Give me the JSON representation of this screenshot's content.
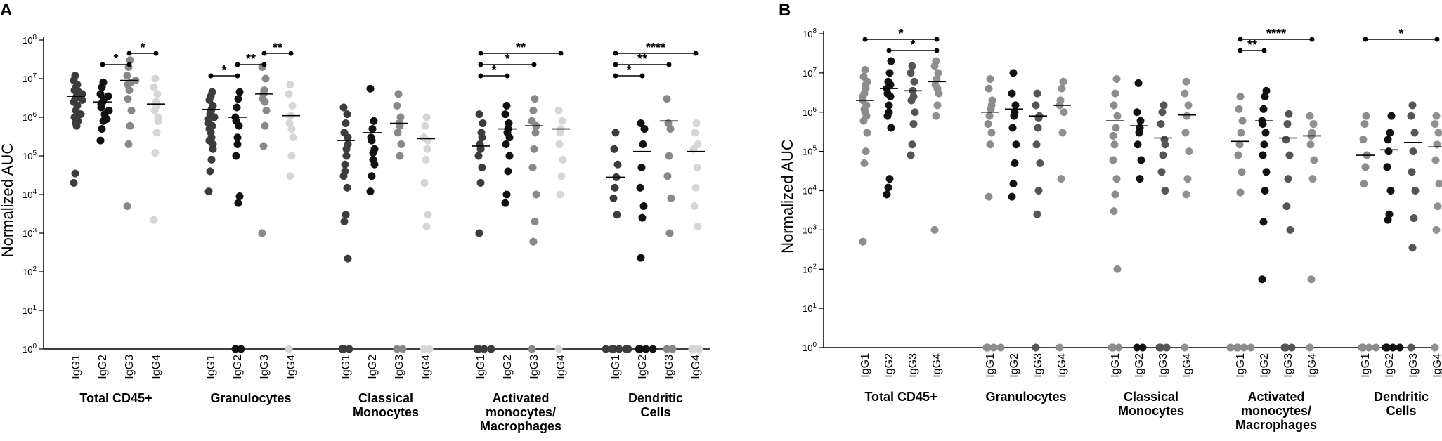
{
  "chart_data": [
    {
      "type": "scatter",
      "panel": "A",
      "ylabel": "Normalized  AUC",
      "yscale": "log10",
      "ylim": [
        1,
        100000000
      ],
      "yticks": [
        {
          "value": 1,
          "base": "10",
          "exp": "0"
        },
        {
          "value": 10,
          "base": "10",
          "exp": "1"
        },
        {
          "value": 100,
          "base": "10",
          "exp": "2"
        },
        {
          "value": 1000,
          "base": "10",
          "exp": "3"
        },
        {
          "value": 10000,
          "base": "10",
          "exp": "4"
        },
        {
          "value": 100000,
          "base": "10",
          "exp": "5"
        },
        {
          "value": 1000000,
          "base": "10",
          "exp": "6"
        },
        {
          "value": 10000000,
          "base": "10",
          "exp": "7"
        },
        {
          "value": 100000000,
          "base": "10",
          "exp": "8"
        }
      ],
      "series_names": [
        "IgG1",
        "IgG2",
        "IgG3",
        "IgG4"
      ],
      "series_colors": [
        "#3c3c3c",
        "#111111",
        "#888888",
        "#d6d6d6"
      ],
      "groups": [
        {
          "lines": [
            "Total CD45+"
          ],
          "medians": [
            3500000,
            2500000,
            9000000,
            2200000
          ],
          "points": [
            [
              20000,
              35000,
              600000,
              800000,
              1000000,
              1500000,
              2000000,
              2500000,
              3000000,
              3500000,
              4000000,
              5000000,
              6000000,
              7000000,
              9000000,
              12000000,
              1200000,
              2800000,
              4500000,
              700000
            ],
            [
              250000,
              500000,
              800000,
              1200000,
              1800000,
              2500000,
              3000000,
              4000000,
              6000000,
              8000000,
              1500000,
              2200000,
              900000,
              3500000
            ],
            [
              5000,
              200000,
              600000,
              1500000,
              3000000,
              5000000,
              8000000,
              12000000,
              20000000,
              30000000,
              9000000,
              7000000
            ],
            [
              2200,
              120000,
              400000,
              800000,
              1500000,
              2500000,
              4000000,
              6000000,
              10000000,
              2000000,
              1000000
            ]
          ],
          "sig": [
            {
              "a": 1,
              "b": 2,
              "label": "*"
            },
            {
              "a": 2,
              "b": 3,
              "label": "*"
            }
          ]
        },
        {
          "lines": [
            "Granulocytes"
          ],
          "medians": [
            1600000,
            1000000,
            4000000,
            1100000
          ],
          "points": [
            [
              12000,
              40000,
              80000,
              150000,
              250000,
              400000,
              600000,
              900000,
              1200000,
              1600000,
              2000000,
              2800000,
              3500000,
              4500000,
              700000,
              1000000,
              300000,
              200000,
              500000,
              1400000
            ],
            [
              1,
              1,
              6000,
              9000,
              100000,
              300000,
              600000,
              1000000,
              1800000,
              3000000,
              4500000,
              800000,
              200000
            ],
            [
              1000,
              180000,
              600000,
              1500000,
              3000000,
              5000000,
              10000000,
              20000000,
              4000000,
              2500000
            ],
            [
              1,
              30000,
              100000,
              300000,
              700000,
              1100000,
              2000000,
              4000000,
              7000000,
              500000
            ]
          ],
          "sig": [
            {
              "a": 0,
              "b": 1,
              "label": "*"
            },
            {
              "a": 1,
              "b": 2,
              "label": "**"
            },
            {
              "a": 2,
              "b": 3,
              "label": "**"
            }
          ]
        },
        {
          "lines": [
            "Classical",
            "Monocytes"
          ],
          "medians": [
            250000,
            400000,
            700000,
            280000
          ],
          "points": [
            [
              1,
              1,
              1,
              220,
              2000,
              3000,
              15000,
              30000,
              60000,
              100000,
              200000,
              400000,
              700000,
              1200000,
              1800000,
              40000,
              150000,
              300000
            ],
            [
              12000,
              30000,
              80000,
              150000,
              300000,
              500000,
              800000,
              5500000,
              250000,
              120000,
              60000
            ],
            [
              1,
              1,
              100000,
              200000,
              400000,
              700000,
              1000000,
              2000000,
              4000000,
              600000
            ],
            [
              1,
              1,
              1500,
              3000,
              20000,
              80000,
              150000,
              300000,
              600000,
              1000000,
              250000
            ]
          ],
          "sig": []
        },
        {
          "lines": [
            "Activated",
            "monocytes/",
            "Macrophages"
          ],
          "medians": [
            180000,
            500000,
            600000,
            500000
          ],
          "points": [
            [
              1,
              1,
              1,
              1,
              1000,
              20000,
              50000,
              100000,
              200000,
              400000,
              700000,
              1200000,
              150000,
              300000
            ],
            [
              6000,
              10000,
              40000,
              100000,
              200000,
              400000,
              700000,
              1200000,
              2000000,
              500000,
              300000
            ],
            [
              1,
              600,
              2000,
              10000,
              50000,
              150000,
              400000,
              800000,
              1500000,
              3000000,
              600000
            ],
            [
              1,
              10000,
              30000,
              80000,
              200000,
              500000,
              800000,
              1500000,
              400000
            ]
          ],
          "sig": [
            {
              "a": 0,
              "b": 1,
              "label": "*"
            },
            {
              "a": 0,
              "b": 2,
              "label": "*"
            },
            {
              "a": 0,
              "b": 3,
              "label": "**"
            }
          ]
        },
        {
          "lines": [
            "Dendritic",
            "Cells"
          ],
          "medians": [
            28000,
            130000,
            800000,
            130000
          ],
          "points": [
            [
              1,
              1,
              1,
              1,
              1,
              1,
              3000,
              8000,
              15000,
              28000,
              60000,
              150000,
              400000
            ],
            [
              1,
              1,
              1,
              1,
              230,
              2500,
              5000,
              15000,
              50000,
              200000,
              500000,
              700000
            ],
            [
              1,
              1,
              1000,
              8000,
              30000,
              100000,
              500000,
              3000000,
              700000
            ],
            [
              1,
              1,
              1,
              1500,
              5000,
              15000,
              50000,
              150000,
              400000,
              700000,
              200000
            ]
          ],
          "sig": [
            {
              "a": 0,
              "b": 1,
              "label": "*"
            },
            {
              "a": 0,
              "b": 2,
              "label": "**"
            },
            {
              "a": 0,
              "b": 3,
              "label": "****"
            }
          ]
        }
      ]
    },
    {
      "type": "scatter",
      "panel": "B",
      "ylabel": "Normalized  AUC",
      "yscale": "log10",
      "ylim": [
        1,
        100000000
      ],
      "yticks": [
        {
          "value": 1,
          "base": "10",
          "exp": "0"
        },
        {
          "value": 10,
          "base": "10",
          "exp": "1"
        },
        {
          "value": 100,
          "base": "10",
          "exp": "2"
        },
        {
          "value": 1000,
          "base": "10",
          "exp": "3"
        },
        {
          "value": 10000,
          "base": "10",
          "exp": "4"
        },
        {
          "value": 100000,
          "base": "10",
          "exp": "5"
        },
        {
          "value": 1000000,
          "base": "10",
          "exp": "6"
        },
        {
          "value": 10000000,
          "base": "10",
          "exp": "7"
        },
        {
          "value": 100000000,
          "base": "10",
          "exp": "8"
        }
      ],
      "series_names": [
        "IgG1",
        "IgG2",
        "IgG3",
        "IgG4"
      ],
      "series_colors": [
        "#8c8c8c",
        "#111111",
        "#555555",
        "#909090"
      ],
      "groups": [
        {
          "lines": [
            "Total CD45+"
          ],
          "medians": [
            2000000,
            4000000,
            3500000,
            6000000
          ],
          "points": [
            [
              500,
              50000,
              100000,
              300000,
              600000,
              1000000,
              1500000,
              2000000,
              3000000,
              4000000,
              6000000,
              8000000,
              12000000,
              800000,
              2500000,
              1200000,
              5000000
            ],
            [
              8000,
              12000,
              20000,
              400000,
              800000,
              1500000,
              2500000,
              4000000,
              6000000,
              10000000,
              20000000,
              3000000,
              1000000,
              5000000
            ],
            [
              80000,
              150000,
              500000,
              1000000,
              2000000,
              3500000,
              6000000,
              10000000,
              15000000,
              2500000
            ],
            [
              1000,
              800000,
              1500000,
              3000000,
              5000000,
              7000000,
              10000000,
              15000000,
              20000000,
              4000000
            ]
          ],
          "sig": [
            {
              "a": 0,
              "b": 3,
              "label": "*"
            },
            {
              "a": 1,
              "b": 3,
              "label": "*"
            }
          ]
        },
        {
          "lines": [
            "Granulocytes"
          ],
          "medians": [
            1000000,
            1200000,
            800000,
            1500000
          ],
          "points": [
            [
              1,
              1,
              1,
              1,
              7000,
              150000,
              300000,
              500000,
              800000,
              1200000,
              2000000,
              4000000,
              7000000,
              1500000
            ],
            [
              7000,
              15000,
              50000,
              150000,
              400000,
              800000,
              1500000,
              3000000,
              10000000,
              1000000
            ],
            [
              1,
              2500,
              10000,
              50000,
              150000,
              400000,
              800000,
              1500000,
              3000000,
              700000
            ],
            [
              1,
              20000,
              300000,
              1000000,
              2000000,
              4000000,
              6000000,
              1500000
            ]
          ],
          "sig": []
        },
        {
          "lines": [
            "Classical",
            "Monocytes"
          ],
          "medians": [
            600000,
            450000,
            220000,
            850000
          ],
          "points": [
            [
              1,
              1,
              1,
              100,
              3000,
              8000,
              20000,
              60000,
              150000,
              400000,
              800000,
              1500000,
              3000000,
              7000000,
              250000
            ],
            [
              1,
              1,
              20000,
              60000,
              150000,
              300000,
              600000,
              1000000,
              5500000,
              400000
            ],
            [
              1,
              1,
              1,
              10000,
              30000,
              80000,
              200000,
              500000,
              1000000,
              1500000,
              150000
            ],
            [
              1,
              8000,
              20000,
              100000,
              300000,
              800000,
              1500000,
              3000000,
              6000000
            ]
          ],
          "sig": []
        },
        {
          "lines": [
            "Activated",
            "monocytes/",
            "Macrophages"
          ],
          "medians": [
            180000,
            600000,
            220000,
            250000
          ],
          "points": [
            [
              1,
              1,
              1,
              1,
              1,
              9000,
              30000,
              80000,
              150000,
              300000,
              600000,
              1200000,
              2500000
            ],
            [
              55,
              1600,
              10000,
              30000,
              80000,
              150000,
              300000,
              600000,
              1200000,
              2500000,
              3500000,
              500000
            ],
            [
              1,
              1,
              1,
              1000,
              4000,
              20000,
              80000,
              200000,
              500000,
              900000
            ],
            [
              1,
              55,
              20000,
              60000,
              150000,
              300000,
              500000,
              800000,
              250000
            ]
          ],
          "sig": [
            {
              "a": 0,
              "b": 1,
              "label": "**"
            },
            {
              "a": 0,
              "b": 3,
              "label": "****"
            }
          ]
        },
        {
          "lines": [
            "Dendritic",
            "Cells"
          ],
          "medians": [
            80000,
            110000,
            170000,
            130000
          ],
          "points": [
            [
              1,
              1,
              1,
              1,
              15000,
              40000,
              80000,
              200000,
              500000,
              800000
            ],
            [
              1,
              1,
              1,
              1,
              1800,
              2500,
              10000,
              40000,
              100000,
              300000,
              800000,
              200000
            ],
            [
              1,
              350,
              2000,
              10000,
              30000,
              100000,
              300000,
              800000,
              1500000
            ],
            [
              1,
              1000,
              4000,
              15000,
              60000,
              150000,
              300000,
              500000,
              800000
            ]
          ],
          "sig": [
            {
              "a": 0,
              "b": 3,
              "label": "*"
            }
          ]
        }
      ]
    }
  ]
}
